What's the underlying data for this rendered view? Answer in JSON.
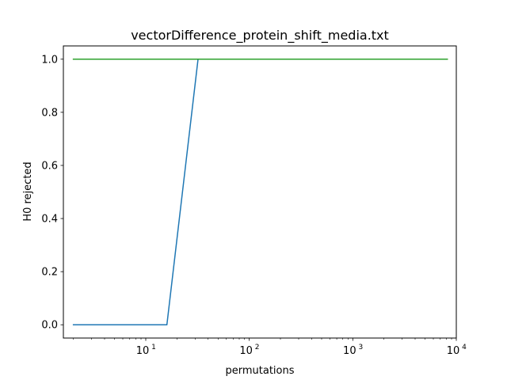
{
  "chart_data": {
    "type": "line",
    "title": "vectorDifference_protein_shift_media.txt",
    "xlabel": "permutations",
    "ylabel": "H0 rejected",
    "xscale": "log",
    "xlim": [
      1.6,
      10000
    ],
    "ylim": [
      -0.05,
      1.05
    ],
    "yticks": [
      0.0,
      0.2,
      0.4,
      0.6,
      0.8,
      1.0
    ],
    "ytick_labels": [
      "0.0",
      "0.2",
      "0.4",
      "0.6",
      "0.8",
      "1.0"
    ],
    "xticks": [
      10,
      100,
      1000,
      10000
    ],
    "xtick_labels": [
      {
        "base": "10",
        "exp": "1"
      },
      {
        "base": "10",
        "exp": "2"
      },
      {
        "base": "10",
        "exp": "3"
      },
      {
        "base": "10",
        "exp": "4"
      }
    ],
    "legend": "none",
    "grid": false,
    "series": [
      {
        "color": "#1f77b4",
        "points": [
          [
            2,
            0
          ],
          [
            4,
            0
          ],
          [
            8,
            0
          ],
          [
            16,
            0
          ],
          [
            32,
            1
          ],
          [
            64,
            1
          ],
          [
            128,
            1
          ],
          [
            256,
            1
          ],
          [
            512,
            1
          ],
          [
            1024,
            1
          ],
          [
            2048,
            1
          ],
          [
            4096,
            1
          ],
          [
            8192,
            1
          ]
        ]
      },
      {
        "color": "#ff7f0e",
        "points": [
          [
            2,
            1
          ],
          [
            4,
            1
          ],
          [
            8,
            1
          ],
          [
            16,
            1
          ],
          [
            32,
            1
          ],
          [
            64,
            1
          ],
          [
            128,
            1
          ],
          [
            256,
            1
          ],
          [
            512,
            1
          ],
          [
            1024,
            1
          ],
          [
            2048,
            1
          ],
          [
            4096,
            1
          ],
          [
            8192,
            1
          ]
        ]
      },
      {
        "color": "#2ca02c",
        "points": [
          [
            2,
            1
          ],
          [
            4,
            1
          ],
          [
            8,
            1
          ],
          [
            16,
            1
          ],
          [
            32,
            1
          ],
          [
            64,
            1
          ],
          [
            128,
            1
          ],
          [
            256,
            1
          ],
          [
            512,
            1
          ],
          [
            1024,
            1
          ],
          [
            2048,
            1
          ],
          [
            4096,
            1
          ],
          [
            8192,
            1
          ]
        ]
      }
    ]
  }
}
